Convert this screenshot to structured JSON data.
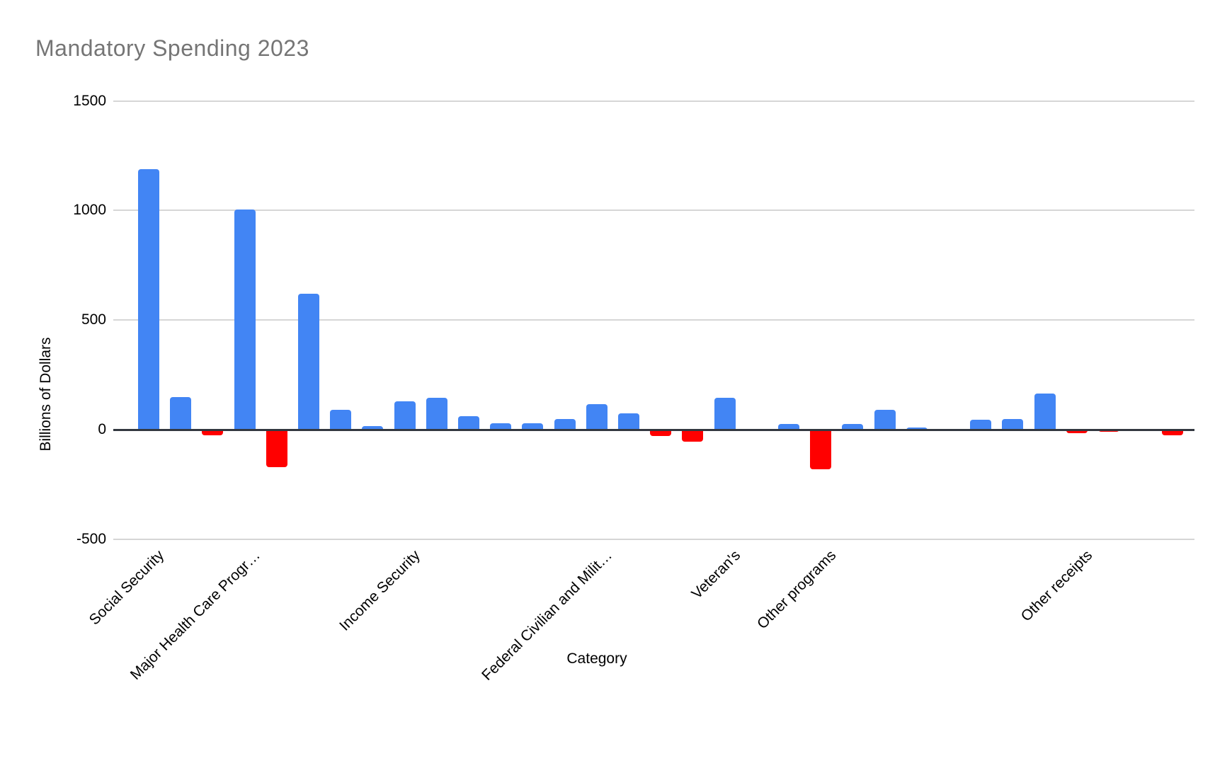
{
  "styles": {
    "background": "#FFFFFF",
    "title_color": "#757575",
    "axis_text_color": "#000000",
    "gridline_color": "#D6D6D6",
    "axis_line_color": "#333840",
    "positive_bar_color": "#4285F4",
    "negative_bar_color": "#FF0000"
  },
  "chart_data": {
    "type": "bar",
    "title": "Mandatory Spending 2023",
    "xlabel": "Category",
    "ylabel": "Billions of Dollars",
    "ylim": [
      -500,
      1500
    ],
    "yticks": [
      1500,
      1000,
      500,
      0,
      -500
    ],
    "grid": true,
    "legend": "none",
    "units": "billions of dollars",
    "categories": [
      "Social Security",
      "",
      "",
      "Major Health Care Progr…",
      "",
      "",
      "",
      "",
      "Income Security",
      "",
      "",
      "",
      "",
      "",
      "Federal Civilian and Milit…",
      "",
      "",
      "",
      "Veteran's",
      "",
      "",
      "Other programs",
      "",
      "",
      "",
      "",
      "",
      "",
      "",
      "Other receipts",
      "",
      "",
      ""
    ],
    "values": [
      1190,
      150,
      -25,
      1005,
      -170,
      620,
      90,
      15,
      130,
      145,
      60,
      30,
      30,
      50,
      115,
      75,
      -30,
      -55,
      145,
      0,
      25,
      -180,
      25,
      90,
      10,
      0,
      45,
      50,
      165,
      -15,
      -10,
      -5,
      -25
    ]
  }
}
